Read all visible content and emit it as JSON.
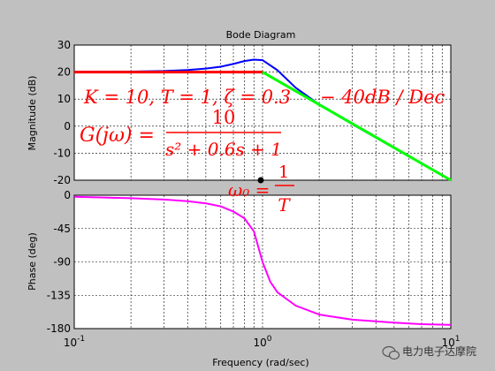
{
  "chart_data": [
    {
      "type": "line",
      "title": "Bode Diagram",
      "ylabel": "Magnitude (dB)",
      "xscale": "log",
      "xlim": [
        0.1,
        10
      ],
      "ylim": [
        -20,
        30
      ],
      "grid": true,
      "x_ticks": [
        "10^-1",
        "10^0",
        "10^1"
      ],
      "y_ticks": [
        "30",
        "20",
        "10",
        "0",
        "-10",
        "-20"
      ],
      "series": [
        {
          "color": "#0000ff",
          "x": [
            0.1,
            0.2,
            0.3,
            0.4,
            0.5,
            0.6,
            0.7,
            0.8,
            0.9,
            1.0,
            1.2,
            1.5,
            2.0,
            3.0,
            5.0,
            7.0,
            10.0
          ],
          "y": [
            20.1,
            20.2,
            20.4,
            20.8,
            21.3,
            22.0,
            23.0,
            24.1,
            24.6,
            24.4,
            20.7,
            14.2,
            8.0,
            0.7,
            -8.1,
            -13.9,
            -20.0
          ]
        },
        {
          "color": "#ff0000",
          "x": [
            0.1,
            1.0
          ],
          "y": [
            20,
            20
          ]
        },
        {
          "color": "#00ff00",
          "x": [
            1.0,
            10.0
          ],
          "y": [
            20,
            -20
          ]
        }
      ],
      "annotations": [
        "K = 10, T = 1, ζ = 0.3",
        "G(jω) = 10 / (s² + 0.6s + 1)",
        "−40dB / Dec"
      ],
      "marker": {
        "x": 1.0,
        "label": "ω₀ = 1/T"
      }
    },
    {
      "type": "line",
      "ylabel": "Phase (deg)",
      "xlabel": "Frequency (rad/sec)",
      "xscale": "log",
      "xlim": [
        0.1,
        10
      ],
      "ylim": [
        -180,
        0
      ],
      "grid": true,
      "x_ticks": [
        "10^-1",
        "10^0",
        "10^1"
      ],
      "y_ticks": [
        "0",
        "-45",
        "-90",
        "-135",
        "-180"
      ],
      "series": [
        {
          "color": "#ff00ff",
          "x": [
            0.1,
            0.2,
            0.3,
            0.4,
            0.5,
            0.6,
            0.7,
            0.8,
            0.9,
            1.0,
            1.1,
            1.2,
            1.5,
            2.0,
            3.0,
            5.0,
            7.0,
            10.0
          ],
          "y": [
            -2,
            -4,
            -5.8,
            -8,
            -11,
            -15,
            -22,
            -31,
            -49,
            -90,
            -117,
            -131,
            -149,
            -161,
            -168,
            -172,
            -174,
            -175
          ]
        }
      ]
    }
  ],
  "annotations": {
    "k_line": "K = 10, T = 1, ζ = 0.3",
    "g_lhs": "G(jω) =",
    "g_num": "10",
    "g_den": "s² + 0.6s + 1",
    "slope": "− 40dB / Dec",
    "omega_lhs": "ω₀ =",
    "omega_num": "1",
    "omega_den": "T"
  },
  "watermark": "电力电子达摩院",
  "colors": {
    "magnitude": "#0000ff",
    "low_asymptote": "#ff0000",
    "high_asymptote": "#00ff00",
    "phase": "#ff00ff",
    "annotation": "#ff0000",
    "background": "#c0c0c0"
  }
}
